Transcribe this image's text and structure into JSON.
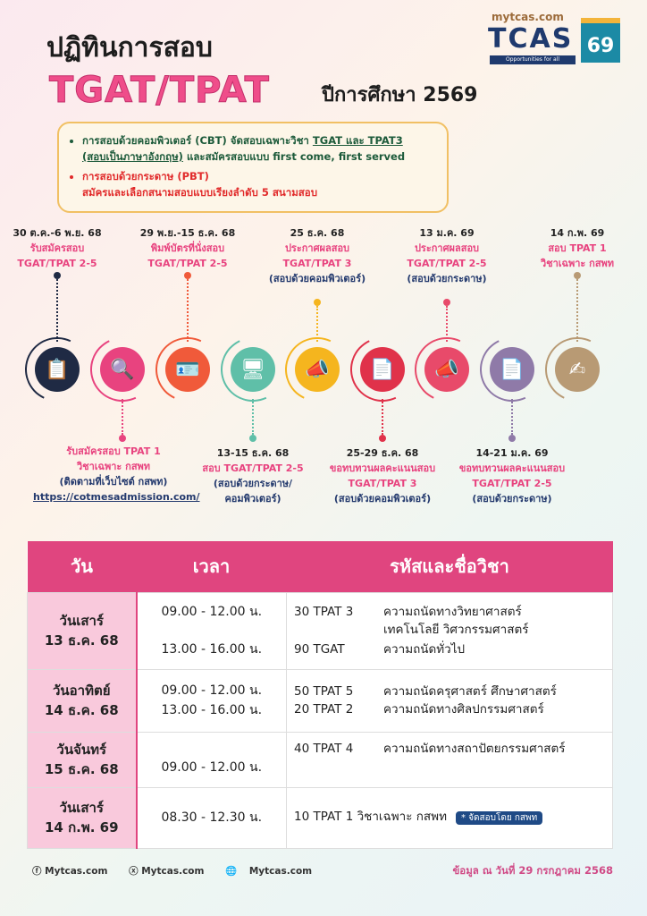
{
  "header": {
    "title": "ปฏิทินการสอบ",
    "exam": "TGAT/TPAT",
    "year": "ปีการศึกษา 2569"
  },
  "logo": {
    "site": "mytcas.com",
    "brand": "TCAS",
    "tagline": "Opportunities for all",
    "number": "69"
  },
  "notice": {
    "cbt_a": "การสอบด้วยคอมพิวเตอร์ (CBT) จัดสอบเฉพาะวิชา ",
    "cbt_u1": "TGAT และ TPAT3",
    "cbt_u2": "(สอบเป็นภาษาอังกฤษ)",
    "cbt_b": " และสมัครสอบแบบ first come, first served",
    "pbt_1": "การสอบด้วยกระดาษ (PBT)",
    "pbt_2": "สมัครและเลือกสนามสอบแบบเรียงลำดับ 5 สนามสอบ"
  },
  "timeline": {
    "top": [
      {
        "date": "30 ต.ค.-6 พ.ย. 68",
        "l1": "รับสมัครสอบ",
        "l2": "TGAT/TPAT 2-5",
        "note": ""
      },
      {
        "date": "29 พ.ย.-15 ธ.ค. 68",
        "l1": "พิมพ์บัตรที่นั่งสอบ",
        "l2": "TGAT/TPAT 2-5",
        "note": ""
      },
      {
        "date": "25 ธ.ค. 68",
        "l1": "ประกาศผลสอบ",
        "l2": "TGAT/TPAT 3",
        "note": "(สอบด้วยคอมพิวเตอร์)"
      },
      {
        "date": "13 ม.ค. 69",
        "l1": "ประกาศผลสอบ",
        "l2": "TGAT/TPAT 2-5",
        "note": "(สอบด้วยกระดาษ)"
      },
      {
        "date": "14 ก.พ. 69",
        "l1": "สอบ TPAT 1",
        "l2": "วิชาเฉพาะ กสพท",
        "note": ""
      }
    ],
    "bottom": [
      {
        "date": "",
        "l1": "รับสมัครสอบ TPAT 1",
        "l2": "วิชาเฉพาะ กสพท",
        "note": "(ติดตามที่เว็บไซต์ กสพท)",
        "link": "https://cotmesadmission.com/"
      },
      {
        "date": "13-15 ธ.ค. 68",
        "l1": "สอบ TGAT/TPAT 2-5",
        "l2": "",
        "note": "(สอบด้วยกระดาษ/ คอมพิวเตอร์)"
      },
      {
        "date": "25-29 ธ.ค. 68",
        "l1": "ขอทบทวนผลคะแนนสอบ",
        "l2": "TGAT/TPAT 3",
        "note": "(สอบด้วยคอมพิวเตอร์)"
      },
      {
        "date": "14-21 ม.ค. 69",
        "l1": "ขอทบทวนผลคะแนนสอบ",
        "l2": "TGAT/TPAT 2-5",
        "note": "(สอบด้วยกระดาษ)"
      }
    ],
    "icons": [
      {
        "name": "clipboard-check-icon",
        "glyph": "📋",
        "color": "#1f2a44"
      },
      {
        "name": "magnifier-document-icon",
        "glyph": "🔍",
        "color": "#e8437f"
      },
      {
        "name": "id-card-icon",
        "glyph": "🪪",
        "color": "#f05a3a"
      },
      {
        "name": "computer-test-icon",
        "glyph": "🖥",
        "color": "#5fbfa8"
      },
      {
        "name": "megaphone-icon",
        "glyph": "📣",
        "color": "#f5b51e"
      },
      {
        "name": "score-sheet-icon",
        "glyph": "📄",
        "color": "#e0324a"
      },
      {
        "name": "megaphone-icon",
        "glyph": "📣",
        "color": "#e84a6a"
      },
      {
        "name": "score-sheet-icon",
        "glyph": "📄",
        "color": "#8f7aa8"
      },
      {
        "name": "student-writing-icon",
        "glyph": "✍",
        "color": "#b89a74"
      }
    ]
  },
  "table": {
    "headers": [
      "วัน",
      "เวลา",
      "รหัสและชื่อวิชา"
    ],
    "rows": [
      {
        "day": "วันเสาร์",
        "date": "13 ธ.ค. 68",
        "times": [
          "09.00 - 12.00 น.",
          "13.00 - 16.00 น."
        ],
        "subjects": [
          {
            "code": "30  TPAT 3",
            "name": "ความถนัดทางวิทยาศาสตร์",
            "name2": "เทคโนโลยี วิศวกรรมศาสตร์"
          },
          {
            "code": "90 TGAT",
            "name": "ความถนัดทั่วไป"
          }
        ]
      },
      {
        "day": "วันอาทิตย์",
        "date": "14 ธ.ค. 68",
        "times": [
          "09.00 - 12.00 น.",
          "13.00 - 16.00 น."
        ],
        "subjects": [
          {
            "code": "50 TPAT 5",
            "name": "ความถนัดครุศาสตร์ ศึกษาศาสตร์"
          },
          {
            "code": "20 TPAT 2",
            "name": "ความถนัดทางศิลปกรรมศาสตร์"
          }
        ]
      },
      {
        "day": "วันจันทร์",
        "date": "15 ธ.ค. 68",
        "times": [
          "09.00 - 12.00 น."
        ],
        "subjects": [
          {
            "code": "40 TPAT 4",
            "name": "ความถนัดทางสถาปัตยกรรมศาสตร์"
          }
        ]
      },
      {
        "day": "วันเสาร์",
        "date": "14 ก.พ. 69",
        "times": [
          "08.30 - 12.30 น."
        ],
        "subjects": [
          {
            "code": "10 TPAT 1 วิชาเฉพาะ กสพท",
            "badge": "* จัดสอบโดย กสพท"
          }
        ]
      }
    ]
  },
  "footer": {
    "facebook": "Mytcas.com",
    "x": "Mytcas.com",
    "web": "Mytcas.com",
    "as_of": "ข้อมูล ณ วันที่ 29 กรกฎาคม 2568"
  }
}
